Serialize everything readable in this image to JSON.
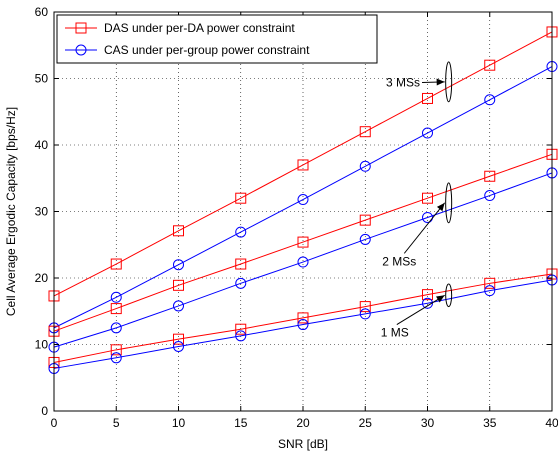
{
  "chart_data": {
    "type": "line",
    "xlabel": "SNR [dB]",
    "ylabel": "Cell Average Ergodic Capacity [bps/Hz]",
    "xlim": [
      0,
      40
    ],
    "ylim": [
      0,
      60
    ],
    "xticks": [
      0,
      5,
      10,
      15,
      20,
      25,
      30,
      35,
      40
    ],
    "yticks": [
      0,
      10,
      20,
      30,
      40,
      50,
      60
    ],
    "grid": "dotted",
    "legend_position": "top-left",
    "x": [
      0,
      5,
      10,
      15,
      20,
      25,
      30,
      35,
      40
    ],
    "series": [
      {
        "name": "DAS under per-DA power constraint",
        "group": "3 MSs",
        "marker": "square",
        "color": "#ff0000",
        "values": [
          17.3,
          22.1,
          27.1,
          32.0,
          37.0,
          42.0,
          47.0,
          52.0,
          57.0
        ]
      },
      {
        "name": "CAS under per-group power constraint",
        "group": "3 MSs",
        "marker": "circle",
        "color": "#0000ff",
        "values": [
          12.5,
          17.1,
          22.0,
          26.9,
          31.8,
          36.8,
          41.8,
          46.8,
          51.8
        ]
      },
      {
        "name": "DAS under per-DA power constraint",
        "group": "2 MSs",
        "marker": "square",
        "color": "#ff0000",
        "values": [
          12.0,
          15.4,
          18.9,
          22.1,
          25.4,
          28.7,
          32.0,
          35.3,
          38.6
        ]
      },
      {
        "name": "CAS under per-group power constraint",
        "group": "2 MSs",
        "marker": "circle",
        "color": "#0000ff",
        "values": [
          9.6,
          12.5,
          15.8,
          19.2,
          22.4,
          25.8,
          29.1,
          32.4,
          35.8
        ]
      },
      {
        "name": "DAS under per-DA power constraint",
        "group": "1 MS",
        "marker": "square",
        "color": "#ff0000",
        "values": [
          7.3,
          9.2,
          10.8,
          12.3,
          14.0,
          15.7,
          17.5,
          19.2,
          20.6
        ]
      },
      {
        "name": "CAS under per-group power constraint",
        "group": "1 MS",
        "marker": "circle",
        "color": "#0000ff",
        "values": [
          6.4,
          8.0,
          9.7,
          11.3,
          13.0,
          14.6,
          16.2,
          18.1,
          19.7
        ]
      }
    ],
    "legend": [
      {
        "label": "DAS under per-DA power constraint",
        "marker": "square",
        "color": "#ff0000"
      },
      {
        "label": "CAS under per-group power constraint",
        "marker": "circle",
        "color": "#0000ff"
      }
    ],
    "annotations": [
      {
        "text": "3 MSs",
        "ellipse_x": 31.7,
        "ellipse_y_range": [
          46.5,
          52.5
        ],
        "text_x": 29.4,
        "text_y": 49.4
      },
      {
        "text": "2 MSs",
        "ellipse_x": 31.7,
        "ellipse_y_range": [
          28.3,
          34.3
        ],
        "text_x": 29.1,
        "text_y": 22.5
      },
      {
        "text": "1 MS",
        "ellipse_x": 31.7,
        "ellipse_y_range": [
          15.7,
          19.1
        ],
        "text_x": 28.5,
        "text_y": 11.8
      }
    ]
  }
}
